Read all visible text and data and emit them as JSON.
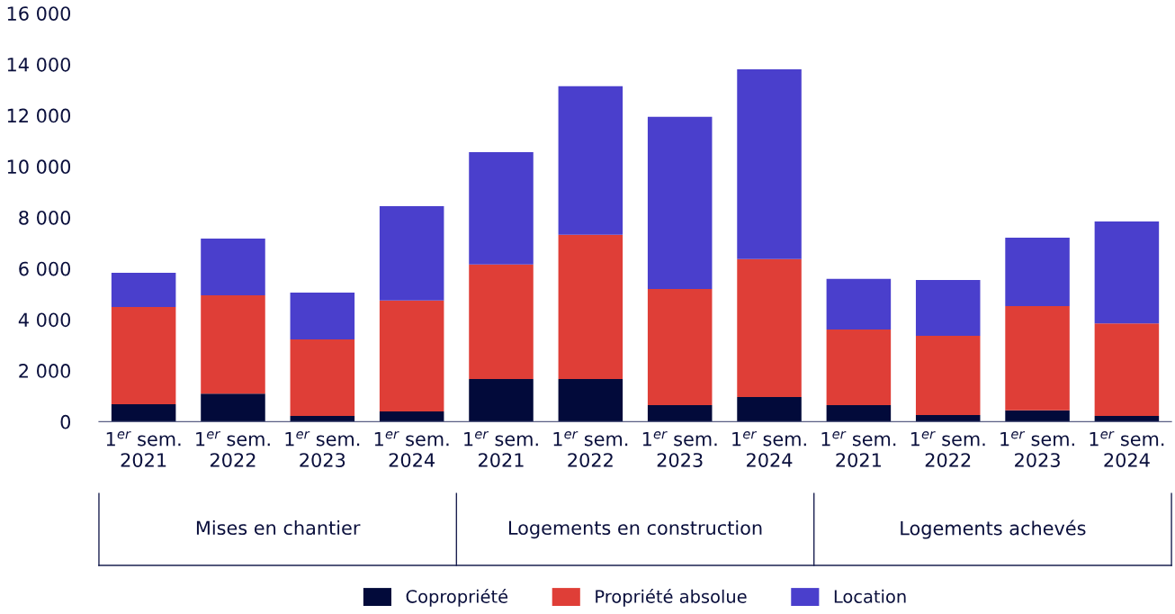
{
  "chart_data": {
    "type": "bar",
    "stacked": true,
    "categories": [
      "1$^{er}$ sem.\n2021",
      "1$^{er}$ sem.\n2022",
      "1$^{er}$ sem.\n2023",
      "1$^{er}$ sem.\n2024",
      "1$^{er}$ sem.\n2021",
      "1$^{er}$ sem.\n2022",
      "1$^{er}$ sem.\n2023",
      "1$^{er}$ sem.\n2024",
      "1$^{er}$ sem.\n2021",
      "1$^{er}$ sem.\n2022",
      "1$^{er}$ sem.\n2023",
      "1$^{er}$ sem.\n2024"
    ],
    "annotations": [
      "Mises en chantier",
      "Logements en construction",
      "Logements achevés"
    ],
    "series": [
      {
        "name": "Copropriété",
        "color": "#020a3a",
        "values": [
          680,
          1100,
          220,
          400,
          1670,
          1670,
          650,
          960,
          650,
          260,
          440,
          220
        ]
      },
      {
        "name": "Propriété absolue",
        "color": "#df3e37",
        "values": [
          3810,
          3850,
          3000,
          4350,
          4490,
          5650,
          4550,
          5410,
          2960,
          3100,
          4090,
          3630
        ]
      },
      {
        "name": "Location",
        "color": "#4a3fcc",
        "values": [
          1340,
          2220,
          1840,
          3690,
          4400,
          5820,
          6740,
          7430,
          1980,
          2190,
          2680,
          3990
        ]
      }
    ],
    "ylim": [
      0,
      16000
    ],
    "yticks": [
      0,
      {
        "value": 2000,
        "label": "2 000"
      },
      {
        "value": 4000,
        "label": "4 000"
      },
      {
        "value": 6000,
        "label": "6 000"
      },
      {
        "value": 8000,
        "label": "8 000"
      },
      {
        "value": 10000,
        "label": "10 000"
      },
      {
        "value": 12000,
        "label": "12 000"
      },
      {
        "value": 14000,
        "label": "14 000"
      },
      {
        "value": 16000,
        "label": "16 000"
      }
    ],
    "grid": false,
    "legend": "bottom"
  }
}
